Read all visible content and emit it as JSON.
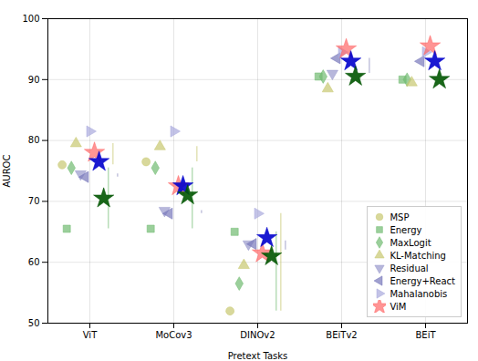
{
  "chart_data": {
    "type": "scatter",
    "xlabel": "Pretext Tasks",
    "ylabel": "AUROC",
    "categories": [
      "ViT",
      "MoCov3",
      "DINOv2",
      "BEiTv2",
      "BEiT"
    ],
    "ylim": [
      50,
      100
    ],
    "yticks": [
      50,
      60,
      70,
      80,
      90,
      100
    ],
    "grid": true,
    "legend": "lower right",
    "series": [
      {
        "name": "MSP",
        "color": "#c8c870",
        "marker": "circle",
        "values": [
          76.0,
          76.5,
          52.0,
          null,
          null
        ]
      },
      {
        "name": "Energy",
        "color": "#70bb70",
        "marker": "square",
        "values": [
          65.5,
          65.5,
          65.0,
          90.5,
          90.0
        ]
      },
      {
        "name": "MaxLogit",
        "color": "#70bb70",
        "marker": "diamond",
        "values": [
          75.5,
          75.5,
          56.5,
          90.5,
          90.0
        ]
      },
      {
        "name": "KL-Matching",
        "color": "#c8c870",
        "marker": "triangle-up",
        "values": [
          79.5,
          79.0,
          59.5,
          88.5,
          89.5
        ]
      },
      {
        "name": "Residual",
        "color": "#9999cc",
        "marker": "triangle-down",
        "values": [
          74.5,
          68.5,
          63.0,
          91.0,
          null
        ]
      },
      {
        "name": "Energy+React",
        "color": "#7777bb",
        "marker": "triangle-left",
        "values": [
          74.0,
          68.0,
          63.0,
          93.5,
          93.0
        ]
      },
      {
        "name": "Mahalanobis",
        "color": "#aaaadd",
        "marker": "triangle-right",
        "values": [
          81.5,
          81.5,
          68.0,
          94.5,
          94.5
        ]
      },
      {
        "name": "ViM",
        "color": "#ff6666",
        "marker": "star",
        "values": [
          78.0,
          72.5,
          61.5,
          95.0,
          95.5
        ]
      },
      {
        "color": "#0000cc",
        "marker": "star",
        "values": [
          76.5,
          72.5,
          64.0,
          93.0,
          93.0
        ]
      },
      {
        "color": "#005500",
        "marker": "star",
        "values": [
          70.5,
          71.0,
          61.0,
          90.5,
          90.0
        ]
      },
      {
        "type": "rule",
        "color": "#70bb70",
        "low": [
          65.5,
          65.5,
          52.0,
          90.0,
          90.0
        ],
        "high": [
          75.5,
          75.5,
          65.0,
          90.5,
          90.0
        ]
      },
      {
        "type": "rule",
        "color": "#c8c870",
        "low": [
          76.0,
          76.5,
          52.0,
          null,
          null
        ],
        "high": [
          79.5,
          79.0,
          68.0,
          null,
          null
        ]
      },
      {
        "type": "rule",
        "color": "#8888bb",
        "low": [
          74.0,
          68.0,
          62.0,
          91.0,
          null
        ],
        "high": [
          74.5,
          68.5,
          63.5,
          93.5,
          null
        ]
      }
    ]
  }
}
